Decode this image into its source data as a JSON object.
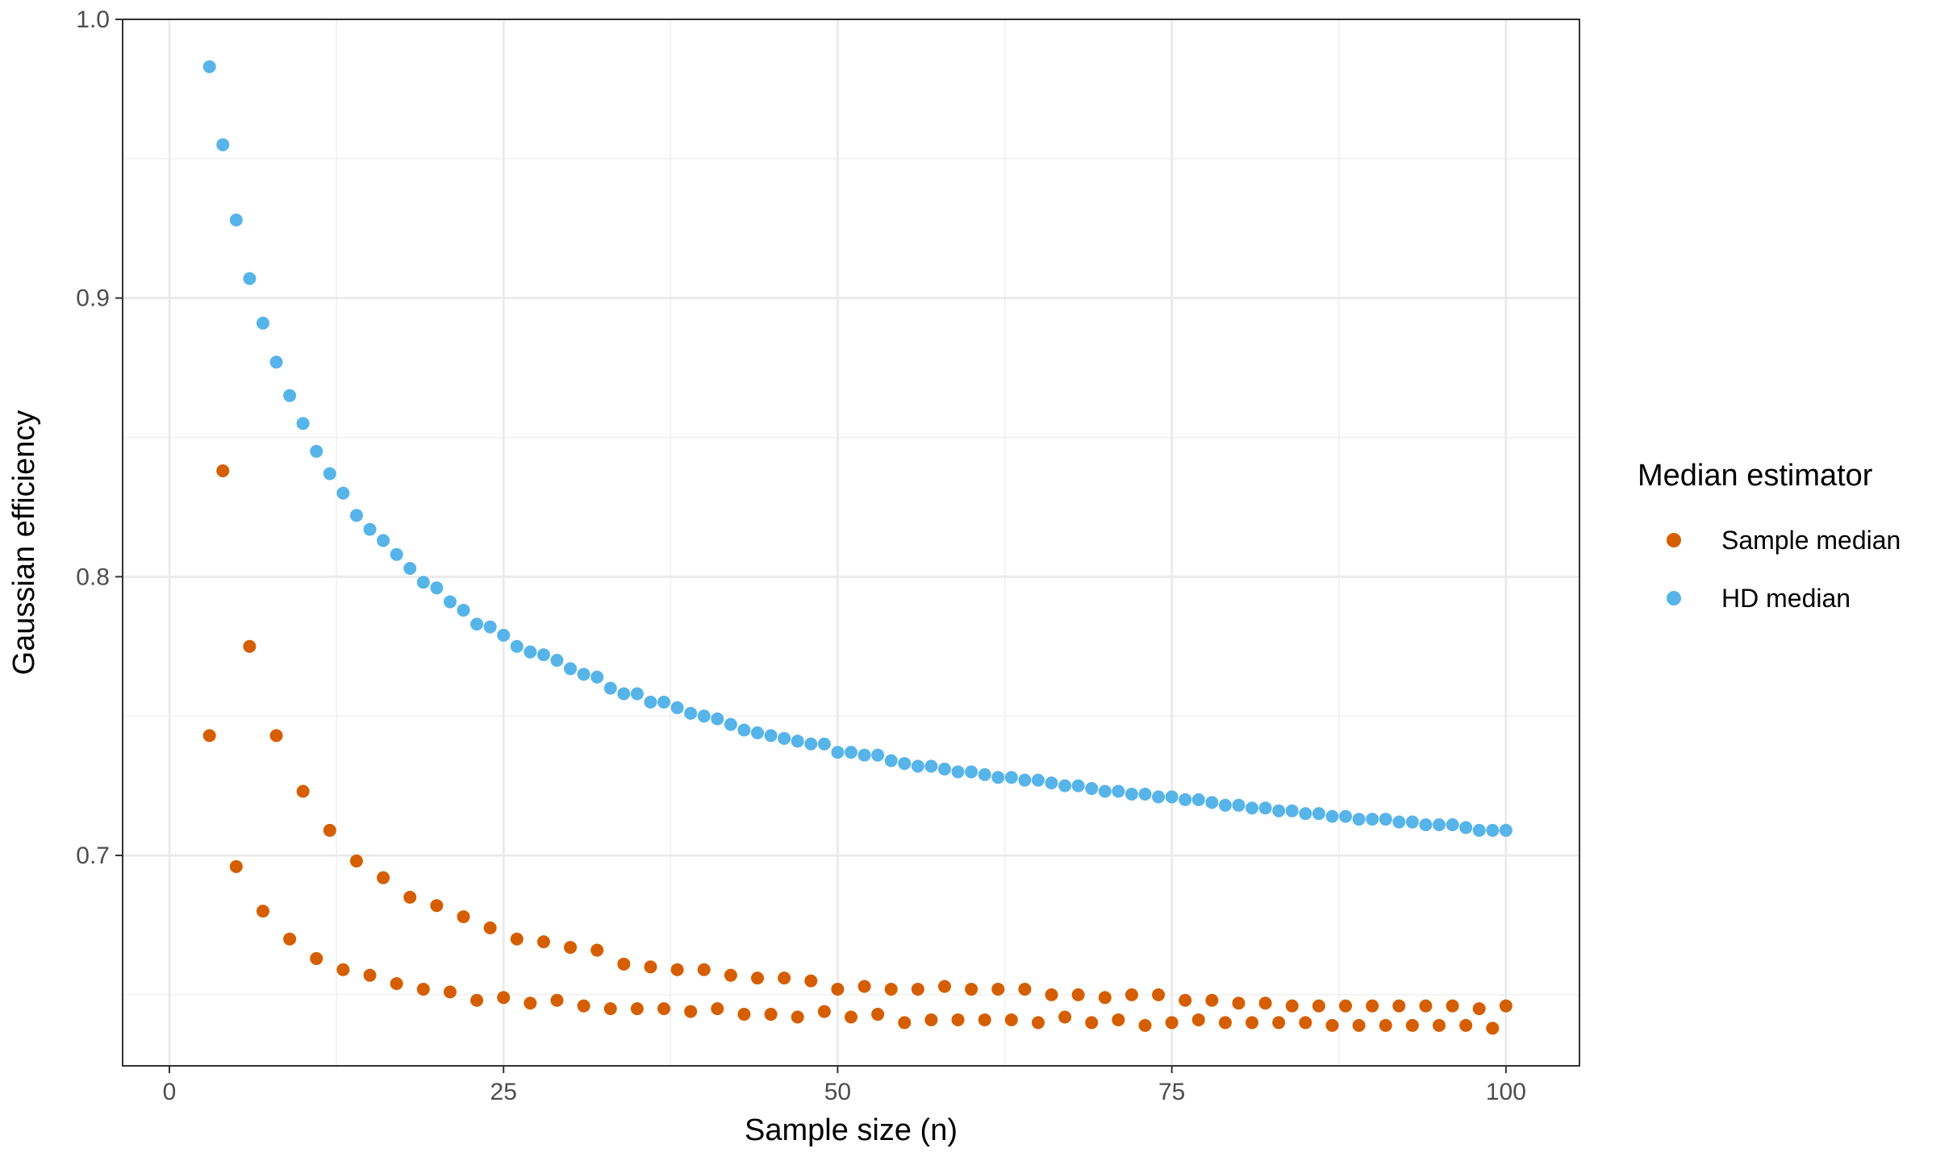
{
  "chart_data": {
    "type": "scatter",
    "title": "",
    "xlabel": "Sample size (n)",
    "ylabel": "Gaussian efficiency",
    "xlim": [
      -3.5,
      105.5
    ],
    "ylim": [
      0.6245,
      1.0
    ],
    "x_ticks": [
      0,
      25,
      50,
      75,
      100
    ],
    "x_tick_labels": [
      "0",
      "25",
      "50",
      "75",
      "100"
    ],
    "y_ticks": [
      0.7,
      0.8,
      0.9,
      1.0
    ],
    "y_tick_labels": [
      "0.7",
      "0.8",
      "0.9",
      "1.0"
    ],
    "grid": true,
    "legend": {
      "title": "Median estimator",
      "placement": "right"
    },
    "series": [
      {
        "name": "Sample median",
        "color": "#D55E00",
        "x": [
          3,
          4,
          5,
          6,
          7,
          8,
          9,
          10,
          11,
          12,
          13,
          14,
          15,
          16,
          17,
          18,
          19,
          20,
          21,
          22,
          23,
          24,
          25,
          26,
          27,
          28,
          29,
          30,
          31,
          32,
          33,
          34,
          35,
          36,
          37,
          38,
          39,
          40,
          41,
          42,
          43,
          44,
          45,
          46,
          47,
          48,
          49,
          50,
          51,
          52,
          53,
          54,
          55,
          56,
          57,
          58,
          59,
          60,
          61,
          62,
          63,
          64,
          65,
          66,
          67,
          68,
          69,
          70,
          71,
          72,
          73,
          74,
          75,
          76,
          77,
          78,
          79,
          80,
          81,
          82,
          83,
          84,
          85,
          86,
          87,
          88,
          89,
          90,
          91,
          92,
          93,
          94,
          95,
          96,
          97,
          98,
          99,
          100
        ],
        "y": [
          0.743,
          0.838,
          0.696,
          0.775,
          0.68,
          0.743,
          0.67,
          0.723,
          0.663,
          0.709,
          0.659,
          0.698,
          0.657,
          0.692,
          0.654,
          0.685,
          0.652,
          0.682,
          0.651,
          0.678,
          0.648,
          0.674,
          0.649,
          0.67,
          0.647,
          0.669,
          0.648,
          0.667,
          0.646,
          0.666,
          0.645,
          0.661,
          0.645,
          0.66,
          0.645,
          0.659,
          0.644,
          0.659,
          0.645,
          0.657,
          0.643,
          0.656,
          0.643,
          0.656,
          0.642,
          0.655,
          0.644,
          0.652,
          0.642,
          0.653,
          0.643,
          0.652,
          0.64,
          0.652,
          0.641,
          0.653,
          0.641,
          0.652,
          0.641,
          0.652,
          0.641,
          0.652,
          0.64,
          0.65,
          0.642,
          0.65,
          0.64,
          0.649,
          0.641,
          0.65,
          0.639,
          0.65,
          0.64,
          0.648,
          0.641,
          0.648,
          0.64,
          0.647,
          0.64,
          0.647,
          0.64,
          0.646,
          0.64,
          0.646,
          0.639,
          0.646,
          0.639,
          0.646,
          0.639,
          0.646,
          0.639,
          0.646,
          0.639,
          0.646,
          0.639,
          0.645,
          0.638,
          0.646
        ]
      },
      {
        "name": "HD median",
        "color": "#56B4E9",
        "x": [
          3,
          4,
          5,
          6,
          7,
          8,
          9,
          10,
          11,
          12,
          13,
          14,
          15,
          16,
          17,
          18,
          19,
          20,
          21,
          22,
          23,
          24,
          25,
          26,
          27,
          28,
          29,
          30,
          31,
          32,
          33,
          34,
          35,
          36,
          37,
          38,
          39,
          40,
          41,
          42,
          43,
          44,
          45,
          46,
          47,
          48,
          49,
          50,
          51,
          52,
          53,
          54,
          55,
          56,
          57,
          58,
          59,
          60,
          61,
          62,
          63,
          64,
          65,
          66,
          67,
          68,
          69,
          70,
          71,
          72,
          73,
          74,
          75,
          76,
          77,
          78,
          79,
          80,
          81,
          82,
          83,
          84,
          85,
          86,
          87,
          88,
          89,
          90,
          91,
          92,
          93,
          94,
          95,
          96,
          97,
          98,
          99,
          100
        ],
        "y": [
          0.983,
          0.955,
          0.928,
          0.907,
          0.891,
          0.877,
          0.865,
          0.855,
          0.845,
          0.837,
          0.83,
          0.822,
          0.817,
          0.813,
          0.808,
          0.803,
          0.798,
          0.796,
          0.791,
          0.788,
          0.783,
          0.782,
          0.779,
          0.775,
          0.773,
          0.772,
          0.77,
          0.767,
          0.765,
          0.764,
          0.76,
          0.758,
          0.758,
          0.755,
          0.755,
          0.753,
          0.751,
          0.75,
          0.749,
          0.747,
          0.745,
          0.744,
          0.743,
          0.742,
          0.741,
          0.74,
          0.74,
          0.737,
          0.737,
          0.736,
          0.736,
          0.734,
          0.733,
          0.732,
          0.732,
          0.731,
          0.73,
          0.73,
          0.729,
          0.728,
          0.728,
          0.727,
          0.727,
          0.726,
          0.725,
          0.725,
          0.724,
          0.723,
          0.723,
          0.722,
          0.722,
          0.721,
          0.721,
          0.72,
          0.72,
          0.719,
          0.718,
          0.718,
          0.717,
          0.717,
          0.716,
          0.716,
          0.715,
          0.715,
          0.714,
          0.714,
          0.713,
          0.713,
          0.713,
          0.712,
          0.712,
          0.711,
          0.711,
          0.711,
          0.71,
          0.709,
          0.709,
          0.709
        ]
      }
    ]
  }
}
